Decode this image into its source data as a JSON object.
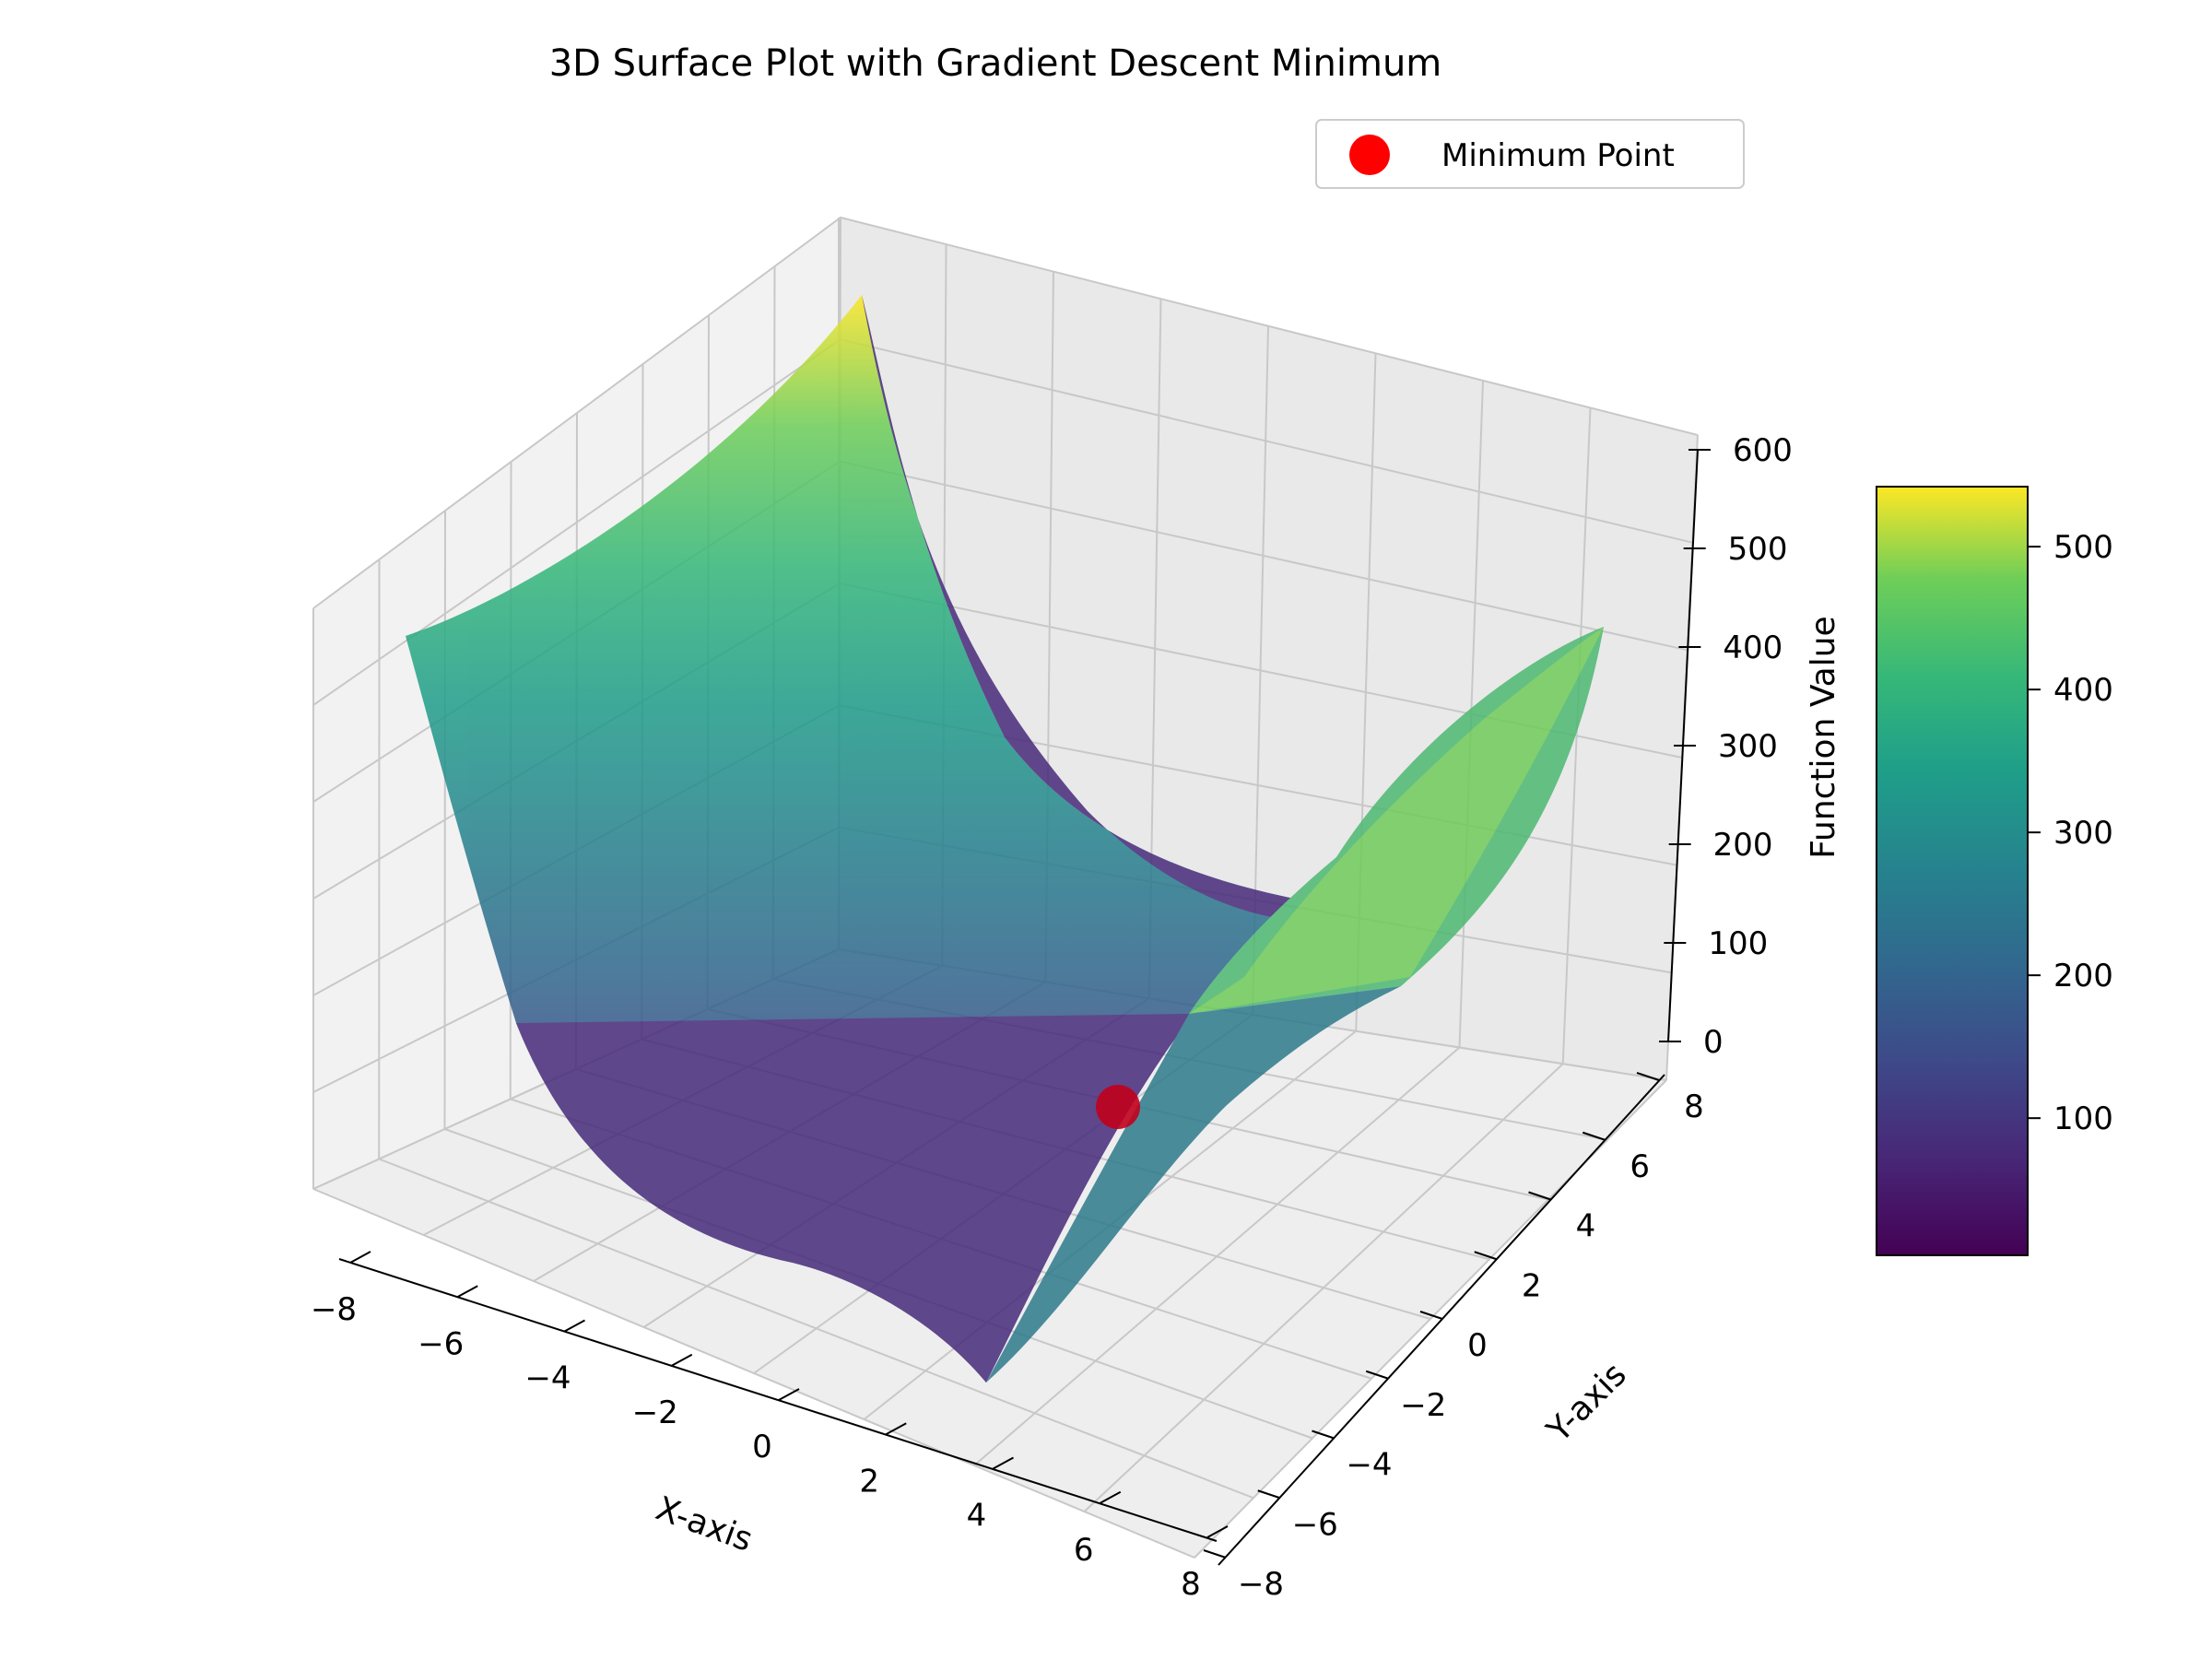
{
  "chart_data": {
    "type": "surface3d",
    "title": "3D Surface Plot with Gradient Descent Minimum",
    "xlabel": "X-axis",
    "ylabel": "Y-axis",
    "zlabel": "Function Value",
    "x_range": [
      -8,
      8
    ],
    "y_range": [
      -8,
      8
    ],
    "z_range": [
      0,
      600
    ],
    "x_ticks": [
      "−8",
      "−6",
      "−4",
      "−2",
      "0",
      "2",
      "4",
      "6",
      "8"
    ],
    "y_ticks": [
      "−8",
      "−6",
      "−4",
      "−2",
      "0",
      "2",
      "4",
      "6",
      "8"
    ],
    "z_ticks": [
      "0",
      "100",
      "200",
      "300",
      "400",
      "500",
      "600"
    ],
    "colormap": "viridis",
    "colorbar": {
      "range": [
        4,
        542
      ],
      "ticks": [
        "100",
        "200",
        "300",
        "400",
        "500"
      ]
    },
    "surface_peaks": {
      "corner_x_-8_y_-8": 540,
      "corner_x_8_y_-8": 380,
      "valley_center_min": 4
    },
    "minimum_point": {
      "x": 2.0,
      "y": 1.0,
      "z": 4,
      "color": "#ff0000"
    },
    "legend": {
      "entries": [
        {
          "label": "Minimum Point",
          "marker": "circle",
          "color": "#ff0000"
        }
      ],
      "placement": "top-right"
    },
    "grid": true
  }
}
